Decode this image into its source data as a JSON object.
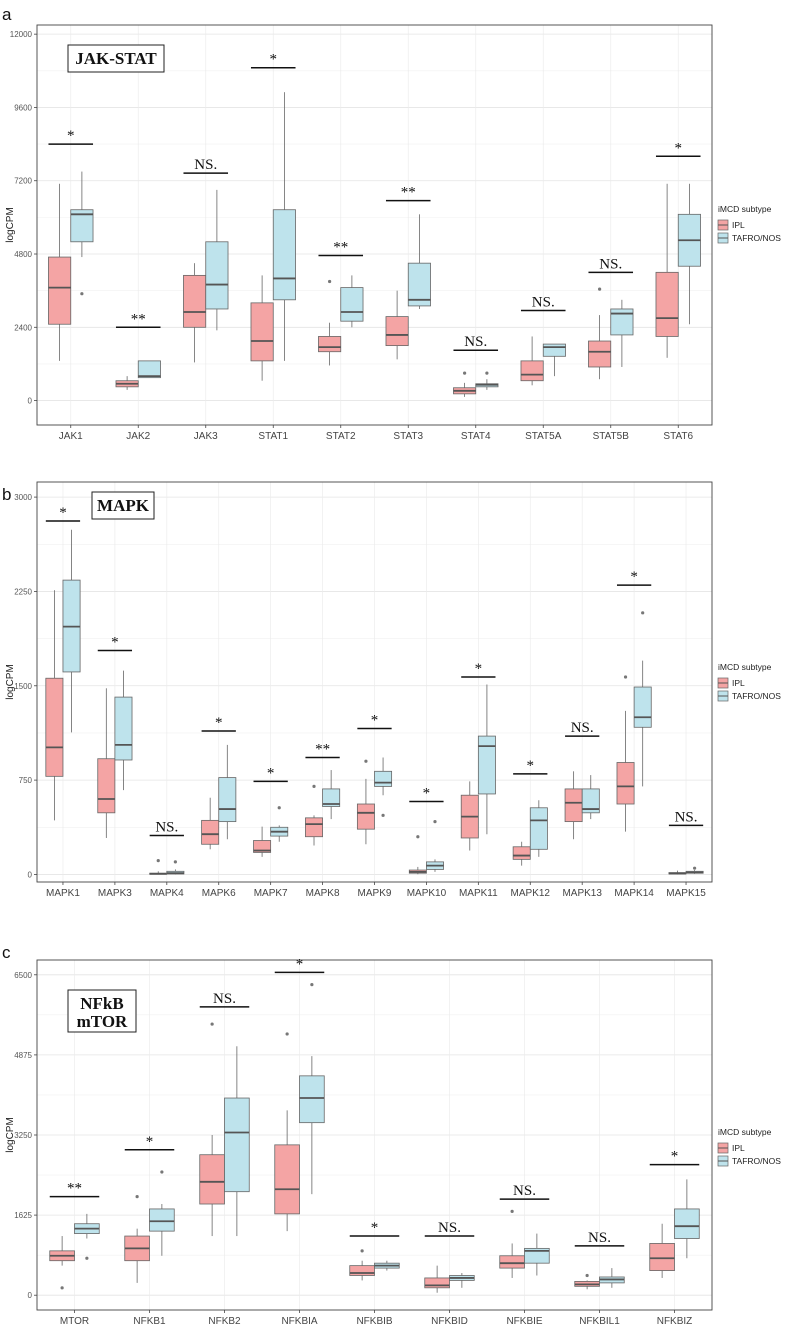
{
  "colors": {
    "ipl": "#F4A4A4",
    "tafro": "#BEE3EC",
    "border": "#666666",
    "median": "#555555"
  },
  "chart_data": [
    {
      "type": "boxplot",
      "panel_label": "a",
      "title": "JAK-STAT",
      "ylabel": "logCPM",
      "ylim": [
        -800,
        12300
      ],
      "yticks": [
        0,
        2400,
        4800,
        7200,
        9600,
        12000
      ],
      "ytick_labels": [
        "0",
        "2400",
        "4800",
        "7200",
        "9600",
        "12000"
      ],
      "legend": {
        "title": "iMCD subtype",
        "items": [
          "IPL",
          "TAFRO/NOS"
        ]
      },
      "categories": [
        "JAK1",
        "JAK2",
        "JAK3",
        "STAT1",
        "STAT2",
        "STAT3",
        "STAT4",
        "STAT5A",
        "STAT5B",
        "STAT6"
      ],
      "significance": [
        "*",
        "**",
        "NS.",
        "*",
        "**",
        "**",
        "NS.",
        "NS.",
        "NS.",
        "*"
      ],
      "sig_y": [
        8400,
        2400,
        7450,
        10900,
        4750,
        6550,
        1650,
        2950,
        4200,
        8000
      ],
      "series": [
        {
          "name": "IPL",
          "boxes": [
            {
              "whislo": 1300,
              "q1": 2500,
              "med": 3700,
              "q3": 4700,
              "whishi": 7100,
              "outliers": []
            },
            {
              "whislo": 350,
              "q1": 450,
              "med": 550,
              "q3": 650,
              "whishi": 800,
              "outliers": []
            },
            {
              "whislo": 1250,
              "q1": 2400,
              "med": 2900,
              "q3": 4100,
              "whishi": 4500,
              "outliers": []
            },
            {
              "whislo": 650,
              "q1": 1300,
              "med": 1950,
              "q3": 3200,
              "whishi": 4100,
              "outliers": []
            },
            {
              "whislo": 1150,
              "q1": 1600,
              "med": 1750,
              "q3": 2100,
              "whishi": 2550,
              "outliers": [
                3900
              ]
            },
            {
              "whislo": 1350,
              "q1": 1800,
              "med": 2150,
              "q3": 2750,
              "whishi": 3600,
              "outliers": []
            },
            {
              "whislo": 120,
              "q1": 220,
              "med": 320,
              "q3": 420,
              "whishi": 580,
              "outliers": [
                900
              ]
            },
            {
              "whislo": 500,
              "q1": 650,
              "med": 850,
              "q3": 1300,
              "whishi": 2100,
              "outliers": []
            },
            {
              "whislo": 700,
              "q1": 1100,
              "med": 1600,
              "q3": 1950,
              "whishi": 2800,
              "outliers": [
                3650
              ]
            },
            {
              "whislo": 1400,
              "q1": 2100,
              "med": 2700,
              "q3": 4200,
              "whishi": 7100,
              "outliers": []
            }
          ]
        },
        {
          "name": "TAFRO/NOS",
          "boxes": [
            {
              "whislo": 4700,
              "q1": 5200,
              "med": 6100,
              "q3": 6250,
              "whishi": 7500,
              "outliers": [
                3500
              ]
            },
            {
              "whislo": 750,
              "q1": 750,
              "med": 800,
              "q3": 1300,
              "whishi": 1300,
              "outliers": []
            },
            {
              "whislo": 2300,
              "q1": 3000,
              "med": 3800,
              "q3": 5200,
              "whishi": 6900,
              "outliers": []
            },
            {
              "whislo": 1300,
              "q1": 3300,
              "med": 4000,
              "q3": 6250,
              "whishi": 10100,
              "outliers": []
            },
            {
              "whislo": 2400,
              "q1": 2600,
              "med": 2900,
              "q3": 3700,
              "whishi": 4100,
              "outliers": []
            },
            {
              "whislo": 3000,
              "q1": 3100,
              "med": 3300,
              "q3": 4500,
              "whishi": 6100,
              "outliers": []
            },
            {
              "whislo": 350,
              "q1": 450,
              "med": 520,
              "q3": 550,
              "whishi": 700,
              "outliers": [
                900
              ]
            },
            {
              "whislo": 800,
              "q1": 1450,
              "med": 1750,
              "q3": 1850,
              "whishi": 1850,
              "outliers": []
            },
            {
              "whislo": 1100,
              "q1": 2150,
              "med": 2850,
              "q3": 3000,
              "whishi": 3300,
              "outliers": []
            },
            {
              "whislo": 2500,
              "q1": 4400,
              "med": 5250,
              "q3": 6100,
              "whishi": 7100,
              "outliers": []
            }
          ]
        }
      ]
    },
    {
      "type": "boxplot",
      "panel_label": "b",
      "title": "MAPK",
      "ylabel": "logCPM",
      "ylim": [
        -60,
        3120
      ],
      "yticks": [
        0,
        750,
        1500,
        2250,
        3000
      ],
      "ytick_labels": [
        "0",
        "750",
        "1500",
        "2250",
        "3000"
      ],
      "legend": {
        "title": "iMCD subtype",
        "items": [
          "IPL",
          "TAFRO/NOS"
        ]
      },
      "categories": [
        "MAPK1",
        "MAPK3",
        "MAPK4",
        "MAPK6",
        "MAPK7",
        "MAPK8",
        "MAPK9",
        "MAPK10",
        "MAPK11",
        "MAPK12",
        "MAPK13",
        "MAPK14",
        "MAPK15"
      ],
      "significance": [
        "*",
        "*",
        "NS.",
        "*",
        "*",
        "**",
        "*",
        "*",
        "*",
        "*",
        "NS.",
        "*",
        "NS."
      ],
      "sig_y": [
        2810,
        1780,
        310,
        1140,
        740,
        930,
        1160,
        580,
        1570,
        800,
        1100,
        2300,
        390
      ],
      "series": [
        {
          "name": "IPL",
          "boxes": [
            {
              "whislo": 430,
              "q1": 780,
              "med": 1010,
              "q3": 1560,
              "whishi": 2260,
              "outliers": []
            },
            {
              "whislo": 290,
              "q1": 490,
              "med": 600,
              "q3": 920,
              "whishi": 1480,
              "outliers": []
            },
            {
              "whislo": 0,
              "q1": 2,
              "med": 5,
              "q3": 10,
              "whishi": 25,
              "outliers": [
                110
              ]
            },
            {
              "whislo": 200,
              "q1": 240,
              "med": 320,
              "q3": 430,
              "whishi": 610,
              "outliers": []
            },
            {
              "whislo": 140,
              "q1": 175,
              "med": 190,
              "q3": 270,
              "whishi": 380,
              "outliers": []
            },
            {
              "whislo": 230,
              "q1": 300,
              "med": 400,
              "q3": 450,
              "whishi": 470,
              "outliers": [
                700
              ]
            },
            {
              "whislo": 240,
              "q1": 360,
              "med": 490,
              "q3": 560,
              "whishi": 760,
              "outliers": [
                900
              ]
            },
            {
              "whislo": 2,
              "q1": 10,
              "med": 20,
              "q3": 35,
              "whishi": 60,
              "outliers": [
                300
              ]
            },
            {
              "whislo": 190,
              "q1": 290,
              "med": 460,
              "q3": 630,
              "whishi": 740,
              "outliers": []
            },
            {
              "whislo": 70,
              "q1": 120,
              "med": 150,
              "q3": 220,
              "whishi": 260,
              "outliers": []
            },
            {
              "whislo": 280,
              "q1": 420,
              "med": 570,
              "q3": 680,
              "whishi": 820,
              "outliers": []
            },
            {
              "whislo": 340,
              "q1": 560,
              "med": 700,
              "q3": 890,
              "whishi": 1300,
              "outliers": [
                1570
              ]
            },
            {
              "whislo": 0,
              "q1": 4,
              "med": 8,
              "q3": 15,
              "whishi": 30,
              "outliers": []
            }
          ]
        },
        {
          "name": "TAFRO/NOS",
          "boxes": [
            {
              "whislo": 1130,
              "q1": 1610,
              "med": 1970,
              "q3": 2340,
              "whishi": 2740,
              "outliers": []
            },
            {
              "whislo": 670,
              "q1": 910,
              "med": 1030,
              "q3": 1410,
              "whishi": 1620,
              "outliers": []
            },
            {
              "whislo": 0,
              "q1": 4,
              "med": 10,
              "q3": 25,
              "whishi": 40,
              "outliers": [
                100
              ]
            },
            {
              "whislo": 280,
              "q1": 420,
              "med": 520,
              "q3": 770,
              "whishi": 1030,
              "outliers": []
            },
            {
              "whislo": 260,
              "q1": 305,
              "med": 340,
              "q3": 375,
              "whishi": 390,
              "outliers": [
                530
              ]
            },
            {
              "whislo": 440,
              "q1": 540,
              "med": 560,
              "q3": 680,
              "whishi": 830,
              "outliers": []
            },
            {
              "whislo": 630,
              "q1": 700,
              "med": 730,
              "q3": 820,
              "whishi": 930,
              "outliers": [
                470
              ]
            },
            {
              "whislo": 20,
              "q1": 40,
              "med": 70,
              "q3": 100,
              "whishi": 120,
              "outliers": [
                420
              ]
            },
            {
              "whislo": 320,
              "q1": 640,
              "med": 1020,
              "q3": 1100,
              "whishi": 1510,
              "outliers": []
            },
            {
              "whislo": 140,
              "q1": 200,
              "med": 430,
              "q3": 530,
              "whishi": 590,
              "outliers": []
            },
            {
              "whislo": 440,
              "q1": 490,
              "med": 520,
              "q3": 680,
              "whishi": 790,
              "outliers": []
            },
            {
              "whislo": 700,
              "q1": 1170,
              "med": 1250,
              "q3": 1490,
              "whishi": 1700,
              "outliers": [
                2080
              ]
            },
            {
              "whislo": 5,
              "q1": 10,
              "med": 15,
              "q3": 25,
              "whishi": 35,
              "outliers": [
                50
              ]
            }
          ]
        }
      ]
    },
    {
      "type": "boxplot",
      "panel_label": "c",
      "title": "NFkB\nmTOR",
      "title_lines": [
        "NFkB",
        "mTOR"
      ],
      "ylabel": "logCPM",
      "ylim": [
        -300,
        6800
      ],
      "yticks": [
        0,
        1625,
        3250,
        4875,
        6500
      ],
      "ytick_labels": [
        "0",
        "1625",
        "3250",
        "4875",
        "6500"
      ],
      "legend": {
        "title": "iMCD subtype",
        "items": [
          "IPL",
          "TAFRO/NOS"
        ]
      },
      "categories": [
        "MTOR",
        "NFKB1",
        "NFKB2",
        "NFKBIA",
        "NFKBIB",
        "NFKBID",
        "NFKBIE",
        "NFKBIL1",
        "NFKBIZ"
      ],
      "significance": [
        "**",
        "*",
        "NS.",
        "*",
        "*",
        "NS.",
        "NS.",
        "NS.",
        "*"
      ],
      "sig_y": [
        2000,
        2950,
        5850,
        6550,
        1200,
        1200,
        1950,
        1000,
        2650
      ],
      "series": [
        {
          "name": "IPL",
          "boxes": [
            {
              "whislo": 600,
              "q1": 700,
              "med": 800,
              "q3": 900,
              "whishi": 1200,
              "outliers": [
                150
              ]
            },
            {
              "whislo": 250,
              "q1": 700,
              "med": 950,
              "q3": 1200,
              "whishi": 1350,
              "outliers": [
                2000
              ]
            },
            {
              "whislo": 1200,
              "q1": 1850,
              "med": 2300,
              "q3": 2850,
              "whishi": 3250,
              "outliers": [
                5500
              ]
            },
            {
              "whislo": 1300,
              "q1": 1650,
              "med": 2150,
              "q3": 3050,
              "whishi": 3750,
              "outliers": [
                5300
              ]
            },
            {
              "whislo": 300,
              "q1": 400,
              "med": 450,
              "q3": 600,
              "whishi": 700,
              "outliers": [
                900
              ]
            },
            {
              "whislo": 50,
              "q1": 150,
              "med": 200,
              "q3": 350,
              "whishi": 600,
              "outliers": []
            },
            {
              "whislo": 350,
              "q1": 550,
              "med": 650,
              "q3": 800,
              "whishi": 1050,
              "outliers": [
                1700
              ]
            },
            {
              "whislo": 120,
              "q1": 180,
              "med": 220,
              "q3": 280,
              "whishi": 300,
              "outliers": [
                400
              ]
            },
            {
              "whislo": 350,
              "q1": 500,
              "med": 750,
              "q3": 1050,
              "whishi": 1450,
              "outliers": []
            }
          ]
        },
        {
          "name": "TAFRO/NOS",
          "boxes": [
            {
              "whislo": 1150,
              "q1": 1250,
              "med": 1350,
              "q3": 1450,
              "whishi": 1650,
              "outliers": [
                750
              ]
            },
            {
              "whislo": 800,
              "q1": 1300,
              "med": 1500,
              "q3": 1750,
              "whishi": 1850,
              "outliers": [
                2500
              ]
            },
            {
              "whislo": 1200,
              "q1": 2100,
              "med": 3300,
              "q3": 4000,
              "whishi": 5050,
              "outliers": []
            },
            {
              "whislo": 2050,
              "q1": 3500,
              "med": 4000,
              "q3": 4450,
              "whishi": 4850,
              "outliers": [
                6300
              ]
            },
            {
              "whislo": 500,
              "q1": 550,
              "med": 600,
              "q3": 650,
              "whishi": 700,
              "outliers": []
            },
            {
              "whislo": 150,
              "q1": 300,
              "med": 350,
              "q3": 400,
              "whishi": 450,
              "outliers": []
            },
            {
              "whislo": 400,
              "q1": 650,
              "med": 900,
              "q3": 950,
              "whishi": 1250,
              "outliers": []
            },
            {
              "whislo": 150,
              "q1": 250,
              "med": 320,
              "q3": 370,
              "whishi": 550,
              "outliers": []
            },
            {
              "whislo": 750,
              "q1": 1150,
              "med": 1400,
              "q3": 1750,
              "whishi": 2350,
              "outliers": []
            }
          ]
        }
      ]
    }
  ]
}
